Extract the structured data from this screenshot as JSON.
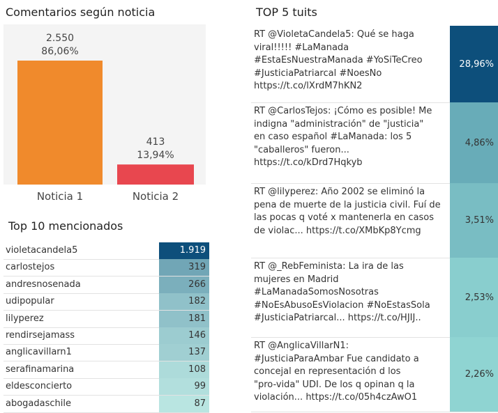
{
  "chart_data": [
    {
      "type": "bar",
      "title": "Comentarios según noticia",
      "categories": [
        "Noticia 1",
        "Noticia 2"
      ],
      "values": [
        2550,
        413
      ],
      "value_labels": [
        "2.550",
        "413"
      ],
      "percent_values": [
        86.06,
        13.94
      ],
      "percent_labels": [
        "86,06%",
        "13,94%"
      ],
      "colors": [
        "#f08a2c",
        "#e8474f"
      ]
    },
    {
      "type": "highlight_table",
      "title": "Top  10 mencionados",
      "categories": [
        "violetacandela5",
        "carlostejos",
        "andresnosenada",
        "udipopular",
        "lilyperez",
        "rendirsejamass",
        "anglicavillarn1",
        "serafinamarina",
        "eldesconcierto",
        "abogadaschile"
      ],
      "values": [
        1919,
        319,
        266,
        182,
        181,
        146,
        137,
        108,
        99,
        87
      ],
      "value_labels": [
        "1.919",
        "319",
        "266",
        "182",
        "181",
        "146",
        "137",
        "108",
        "99",
        "87"
      ],
      "color_low": "#b9e5e1",
      "color_high": "#0d4f7b"
    },
    {
      "type": "highlight_table",
      "title": "TOP 5 tuits",
      "categories": [
        "RT @VioletaCandela5: Qué se haga\nviral!!!!! #LaManada\n#EstaEsNuestraManada #YoSiTeCreo\n#JusticiaPatriarcal #NoesNo\nhttps://t.co/lXrdM7hKN2",
        "RT @CarlosTejos: ¡Cómo es posible! Me\nindigna \"administración\" de \"justicia\"\nen caso español  #LaManada: los 5\n\"caballeros\" fueron...\nhttps://t.co/kDrd7Hqkyb",
        "RT @lilyperez: Año 2002 se eliminó la\npena de muerte de la justicia civil. Fuí de\nlas pocas q voté x mantenerla en casos\nde violac... https://t.co/XMbKp8Ycmg",
        "RT @_RebFeminista: La ira de las\nmujeres en Madrid\n#LaManadaSomosNosotras\n#NoEsAbusoEsViolacion #NoEstasSola\n#JusticiaPatriarcal... https://t.co/HJIJ..",
        "RT @AnglicaVillarN1:\n#JusticiaParaAmbar Fue candidato a\nconcejal en representación d los\n\"pro-vida\" UDI. De los q opinan q la\nviolación... https://t.co/05h4czAwO1"
      ],
      "values": [
        28.96,
        4.86,
        3.51,
        2.53,
        2.26
      ],
      "value_labels": [
        "28,96%",
        "4,86%",
        "3,51%",
        "2,53%",
        "2,26%"
      ],
      "color_low": "#8fd4d2",
      "color_high": "#0d4f7b"
    }
  ]
}
